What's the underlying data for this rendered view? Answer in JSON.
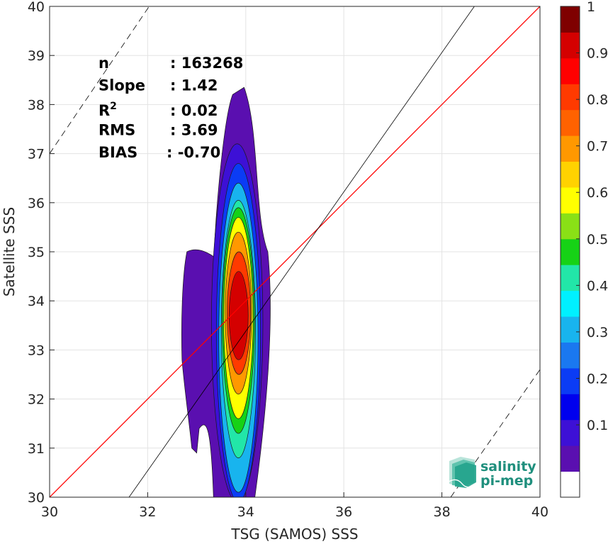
{
  "chart_data": {
    "type": "heatmap",
    "subtype": "filled-contour density scatter",
    "title": "",
    "xlabel": "TSG (SAMOS) SSS",
    "ylabel": "Satellite SSS",
    "xlim": [
      30,
      40
    ],
    "ylim": [
      30,
      40
    ],
    "x_ticks": [
      30,
      32,
      34,
      36,
      38,
      40
    ],
    "y_ticks": [
      30,
      31,
      32,
      33,
      34,
      35,
      36,
      37,
      38,
      39,
      40
    ],
    "grid": true,
    "colorbar": {
      "ticks": [
        0.1,
        0.2,
        0.3,
        0.4,
        0.5,
        0.6,
        0.7,
        0.8,
        0.9,
        1
      ],
      "tick_labels": [
        "0.1",
        "0.2",
        "0.3",
        "0.4",
        "0.5",
        "0.6",
        "0.7",
        "0.8",
        "0.9",
        "1"
      ],
      "colors": [
        "#ffffff",
        "#5a0fb0",
        "#3d10d6",
        "#0000ee",
        "#0b3cf5",
        "#1a78f0",
        "#18b4ee",
        "#00f0ff",
        "#22e6a8",
        "#16d216",
        "#8ae016",
        "#ffff00",
        "#ffd200",
        "#ff9800",
        "#ff6200",
        "#ff3a00",
        "#ff0000",
        "#d40000",
        "#7f0000"
      ]
    },
    "density_center": {
      "x": 33.85,
      "y": 33.9
    },
    "contour_levels": [
      {
        "level": 0.05,
        "x_range": [
          32.7,
          34.6
        ],
        "y_range": [
          29.8,
          38.35
        ],
        "color": "#5a0fb0"
      },
      {
        "level": 0.1,
        "x_range": [
          33.3,
          34.35
        ],
        "y_range": [
          29.9,
          37.2
        ],
        "color": "#3d10d6"
      },
      {
        "level": 0.2,
        "x_range": [
          33.4,
          34.3
        ],
        "y_range": [
          29.9,
          36.8
        ],
        "color": "#0b3cf5"
      },
      {
        "level": 0.3,
        "x_range": [
          33.45,
          34.25
        ],
        "y_range": [
          30.1,
          36.4
        ],
        "color": "#18b4ee"
      },
      {
        "level": 0.4,
        "x_range": [
          33.5,
          34.2
        ],
        "y_range": [
          30.8,
          36.05
        ],
        "color": "#22e6a8"
      },
      {
        "level": 0.5,
        "x_range": [
          33.52,
          34.18
        ],
        "y_range": [
          31.3,
          35.9
        ],
        "color": "#16d216"
      },
      {
        "level": 0.6,
        "x_range": [
          33.55,
          34.15
        ],
        "y_range": [
          31.6,
          35.7
        ],
        "color": "#ffff00"
      },
      {
        "level": 0.7,
        "x_range": [
          33.58,
          34.12
        ],
        "y_range": [
          32.1,
          35.4
        ],
        "color": "#ff9800"
      },
      {
        "level": 0.8,
        "x_range": [
          33.62,
          34.1
        ],
        "y_range": [
          32.5,
          35.0
        ],
        "color": "#ff3a00"
      },
      {
        "level": 0.9,
        "x_range": [
          33.66,
          34.05
        ],
        "y_range": [
          32.8,
          34.6
        ],
        "color": "#d40000"
      }
    ],
    "lines": [
      {
        "label": "1:1",
        "color": "#ff0000",
        "style": "solid",
        "points": [
          [
            30,
            30
          ],
          [
            40,
            40
          ]
        ]
      },
      {
        "label": "regression",
        "color": "#000000",
        "style": "solid",
        "slope": 1.42,
        "intercept": -14.9
      },
      {
        "label": "upper bound",
        "color": "#000000",
        "style": "dashed",
        "points": [
          [
            30,
            37.0
          ],
          [
            32.03,
            40
          ]
        ]
      },
      {
        "label": "lower bound",
        "color": "#000000",
        "style": "dashed",
        "points": [
          [
            38.18,
            30
          ],
          [
            40,
            32.6
          ]
        ]
      }
    ],
    "stats": [
      {
        "key": "n",
        "value": ": 163268"
      },
      {
        "key": "Slope",
        "value": ": 1.42"
      },
      {
        "key": "R",
        "sup": "2",
        "value": ": 0.02"
      },
      {
        "key": "RMS",
        "value": ": 3.69"
      },
      {
        "key": "BIAS",
        "value": ": -0.70"
      }
    ]
  },
  "logo": {
    "line1": "salinity",
    "line2": "pi-mep",
    "icon": "salinity-waves-icon"
  }
}
